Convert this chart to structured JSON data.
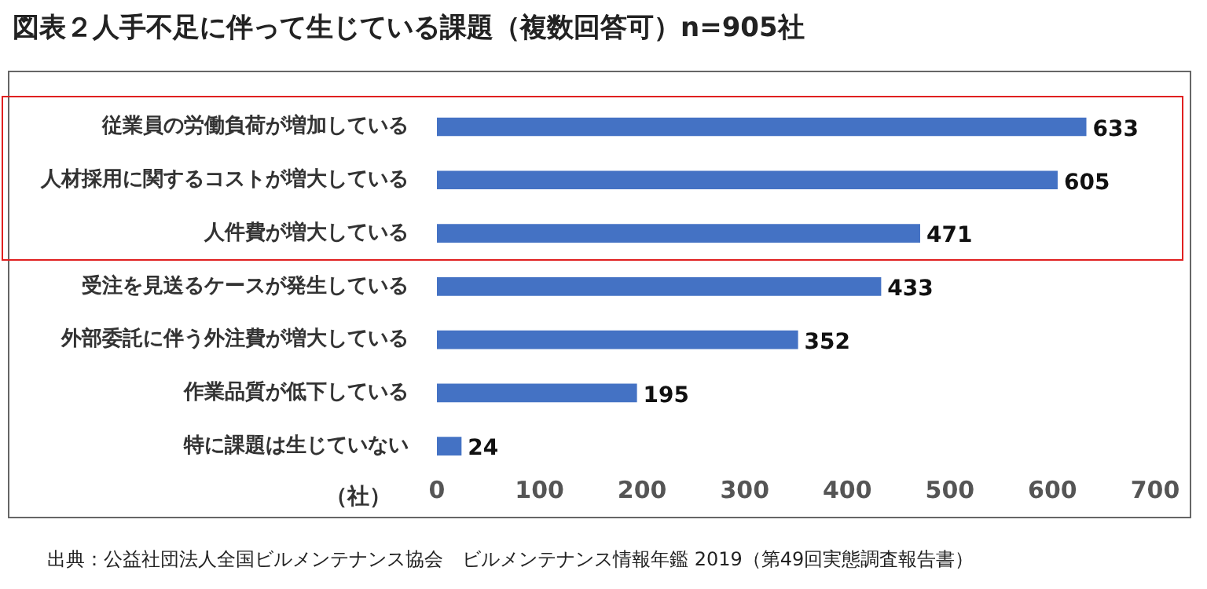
{
  "chart_data": {
    "type": "bar",
    "orientation": "horizontal",
    "title": "図表２人手不足に伴って生じている課題（複数回答可）n=905社",
    "categories": [
      "従業員の労働負荷が増加している",
      "人材採用に関するコストが増大している",
      "人件費が増大している",
      "受注を見送るケースが発生している",
      "外部委託に伴う外注費が増大している",
      "作業品質が低下している",
      "特に課題は生じていない"
    ],
    "values": [
      633,
      605,
      471,
      433,
      352,
      195,
      24
    ],
    "color": "#4472c4",
    "xlabel": "（社）",
    "xlim": [
      0,
      700
    ],
    "xticks": [
      0,
      100,
      200,
      300,
      400,
      500,
      600,
      700
    ],
    "grid": false,
    "legend": false,
    "data_labels": true,
    "annotations": [
      "出典：公益社団法人全国ビルメンテナンス協会　ビルメンテナンス情報年鑑 2019（第49回実態調査報告書）"
    ]
  }
}
